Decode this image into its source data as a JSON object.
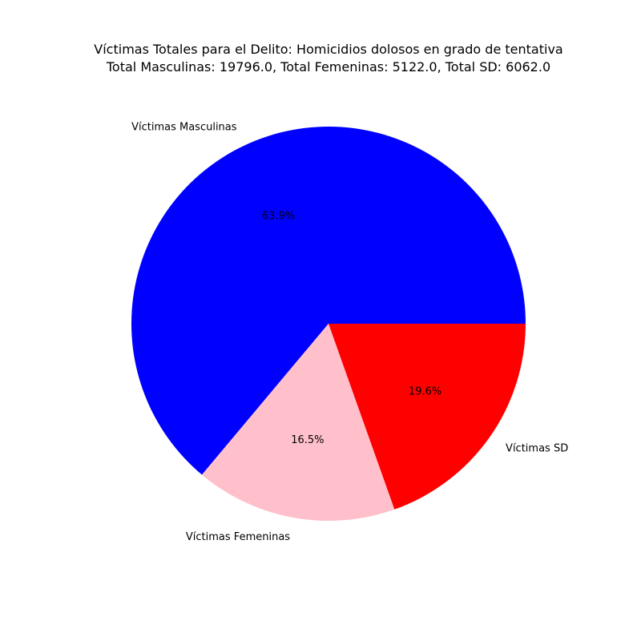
{
  "chart_data": {
    "type": "pie",
    "title": [
      "Víctimas Totales para el Delito: Homicidios dolosos en grado de tentativa",
      "Total Masculinas: 19796.0, Total Femeninas: 5122.0, Total SD: 6062.0"
    ],
    "categories": [
      "Víctimas Masculinas",
      "Víctimas Femeninas",
      "Víctimas SD"
    ],
    "values": [
      19796.0,
      5122.0,
      6062.0
    ],
    "percent_labels": [
      "63.9%",
      "16.5%",
      "19.6%"
    ],
    "colors": [
      "#0000ff",
      "#ffc0cb",
      "#ff0000"
    ],
    "start_angle_deg": 0,
    "direction": "counterclockwise"
  }
}
